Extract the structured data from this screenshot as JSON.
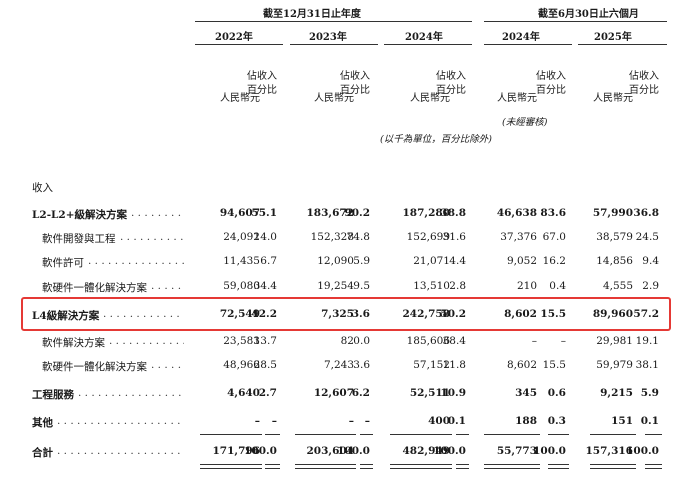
{
  "header": {
    "period_fy": "截至12月31日止年度",
    "period_h1": "截至6月30日止六個月",
    "years": [
      "2022年",
      "2023年",
      "2024年",
      "2024年",
      "2025年"
    ],
    "unit_rmb": "人民幣元",
    "unit_pct_line1": "佔收入",
    "unit_pct_line2": "百分比",
    "note_unit": "(以千為單位，百分比除外)",
    "note_unaudited": "(未經審核)"
  },
  "section_title": "收入",
  "rows": [
    {
      "label": "L2-L2+級解決方案",
      "bold": true,
      "indent": false,
      "values": [
        "94,607",
        "55.1",
        "183,672",
        "90.2",
        "187,280",
        "38.8",
        "46,638",
        "83.6",
        "57,990",
        "36.8"
      ]
    },
    {
      "label": "軟件開發與工程",
      "bold": false,
      "indent": true,
      "values": [
        "24,092",
        "14.0",
        "152,328",
        "74.8",
        "152,699",
        "31.6",
        "37,376",
        "67.0",
        "38,579",
        "24.5"
      ]
    },
    {
      "label": "軟件許可",
      "bold": false,
      "indent": true,
      "values": [
        "11,435",
        "6.7",
        "12,090",
        "5.9",
        "21,071",
        "4.4",
        "9,052",
        "16.2",
        "14,856",
        "9.4"
      ]
    },
    {
      "label": "軟硬件一體化解決方案",
      "bold": false,
      "indent": true,
      "values": [
        "59,080",
        "34.4",
        "19,254",
        "9.5",
        "13,510",
        "2.8",
        "210",
        "0.4",
        "4,555",
        "2.9"
      ]
    },
    {
      "label": "L4級解決方案",
      "bold": true,
      "indent": false,
      "values": [
        "72,549",
        "42.2",
        "7,325",
        "3.6",
        "242,758",
        "50.2",
        "8,602",
        "15.5",
        "89,960",
        "57.2"
      ]
    },
    {
      "label": "軟件解決方案",
      "bold": false,
      "indent": true,
      "values": [
        "23,583",
        "13.7",
        "82",
        "0.0",
        "185,606",
        "38.4",
        "–",
        "–",
        "29,981",
        "19.1"
      ]
    },
    {
      "label": "軟硬件一體化解決方案",
      "bold": false,
      "indent": true,
      "values": [
        "48,966",
        "28.5",
        "7,243",
        "3.6",
        "57,152",
        "11.8",
        "8,602",
        "15.5",
        "59,979",
        "38.1"
      ]
    },
    {
      "label": "工程服務",
      "bold": true,
      "indent": false,
      "values": [
        "4,640",
        "2.7",
        "12,607",
        "6.2",
        "52,511",
        "10.9",
        "345",
        "0.6",
        "9,215",
        "5.9"
      ]
    },
    {
      "label": "其他",
      "bold": true,
      "indent": false,
      "values": [
        "–",
        "–",
        "–",
        "–",
        "400",
        "0.1",
        "188",
        "0.3",
        "151",
        "0.1"
      ]
    },
    {
      "label": "合計",
      "bold": true,
      "indent": false,
      "values": [
        "171,796",
        "100.0",
        "203,604",
        "100.0",
        "482,949",
        "100.0",
        "55,773",
        "100.0",
        "157,316",
        "100.0"
      ]
    }
  ]
}
